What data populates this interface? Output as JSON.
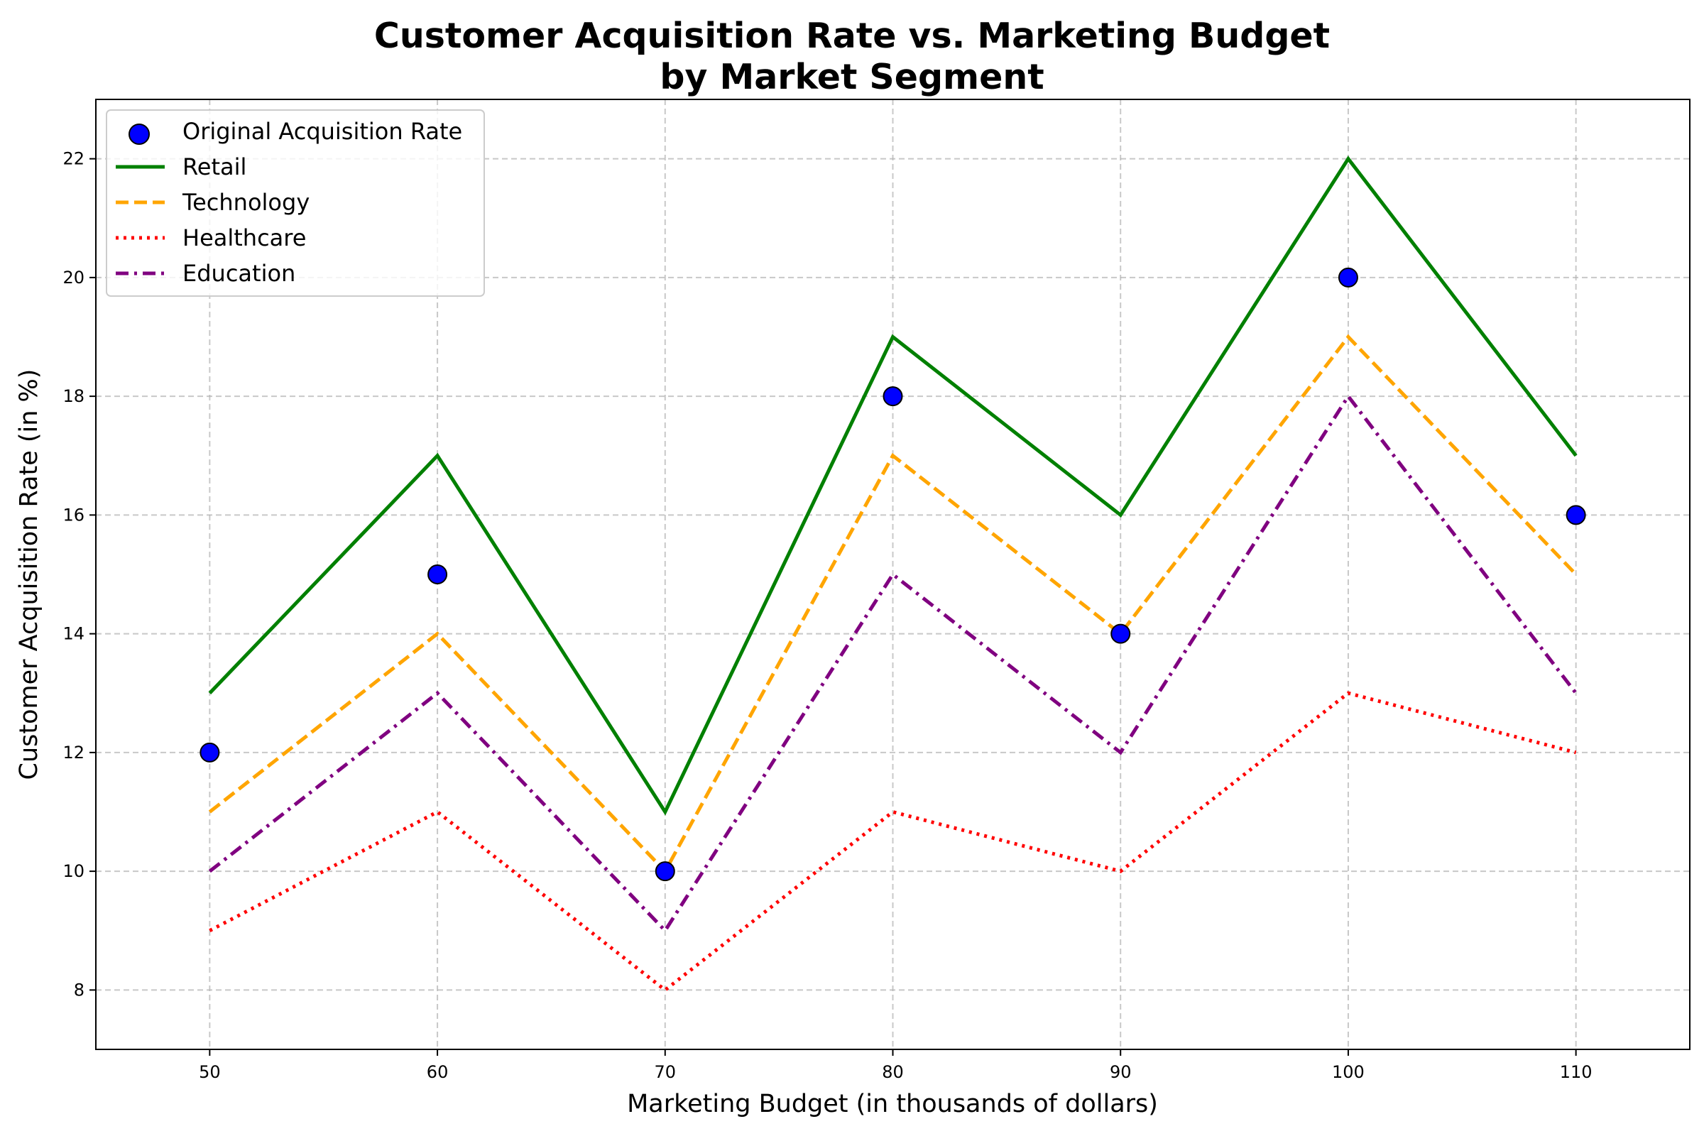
{
  "chart_data": {
    "type": "line",
    "title": "Customer Acquisition Rate vs. Marketing Budget",
    "subtitle": "by Market Segment",
    "xlabel": "Marketing Budget (in thousands of dollars)",
    "ylabel": "Customer Acquisition Rate (in %)",
    "x": [
      50,
      60,
      70,
      80,
      90,
      100,
      110
    ],
    "xlim": [
      45,
      115
    ],
    "ylim": [
      7,
      23
    ],
    "xticks": [
      50,
      60,
      70,
      80,
      90,
      100,
      110
    ],
    "yticks": [
      8,
      10,
      12,
      14,
      16,
      18,
      20,
      22
    ],
    "grid": true,
    "legend_position": "upper-left",
    "scatter": {
      "name": "Original Acquisition Rate",
      "values": [
        12,
        15,
        10,
        18,
        14,
        20,
        16
      ],
      "color": "#0000ff"
    },
    "series": [
      {
        "name": "Retail",
        "values": [
          13,
          17,
          11,
          19,
          16,
          22,
          17
        ],
        "color": "#008000",
        "style": "solid"
      },
      {
        "name": "Technology",
        "values": [
          11,
          14,
          10,
          17,
          14,
          19,
          15
        ],
        "color": "#ffa500",
        "style": "dashed"
      },
      {
        "name": "Healthcare",
        "values": [
          9,
          11,
          8,
          11,
          10,
          13,
          12
        ],
        "color": "#ff0000",
        "style": "dotted"
      },
      {
        "name": "Education",
        "values": [
          10,
          13,
          9,
          15,
          12,
          18,
          13
        ],
        "color": "#800080",
        "style": "dashdot"
      }
    ]
  }
}
